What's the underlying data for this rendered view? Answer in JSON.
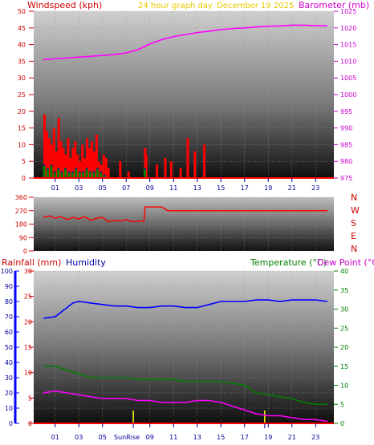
{
  "header": {
    "windspeed_label": "Windspeed (kph)",
    "graph_title": "24 hour graph day",
    "date": "December 19 2025",
    "barometer_label": "Barometer (mb)"
  },
  "wind_panel": {
    "compass_letters": [
      "N",
      "W",
      "S",
      "E",
      "N"
    ]
  },
  "lower_header": {
    "rainfall_label": "Rainfall (mm)",
    "humidity_label": "Humidity",
    "temperature_label": "Temperature (°C)",
    "dewpoint_label": "Dew Point (°C)"
  },
  "footer": {
    "sunrise_label": "SunRise"
  },
  "colors": {
    "wind": "#ff0000",
    "gust_fill": "#ff0000",
    "barometer": "#ff00ff",
    "direction": "#ff0000",
    "humidity": "#0000ff",
    "temperature": "#008000",
    "dewpoint": "#ff00ff",
    "rainfall": "#ff0000",
    "marker": "#ffff00",
    "rain_scale": "#0000ff"
  },
  "chart_data": [
    {
      "type": "line",
      "panel": "wind-barometer",
      "x_ticks": [
        "01",
        "03",
        "05",
        "07",
        "09",
        "11",
        "13",
        "15",
        "17",
        "19",
        "21",
        "23"
      ],
      "y_left": {
        "label": "Windspeed (kph)",
        "ticks": [
          0,
          5,
          10,
          15,
          20,
          25,
          30,
          35,
          40,
          45,
          50
        ],
        "ylim": [
          0,
          50
        ]
      },
      "y_right": {
        "label": "Barometer (mb)",
        "ticks": [
          975,
          980,
          985,
          990,
          995,
          1000,
          1005,
          1010,
          1015,
          1020,
          1025
        ],
        "ylim": [
          975,
          1025
        ]
      },
      "series": [
        {
          "name": "Barometer (mb)",
          "axis": "right",
          "x": [
            0,
            2,
            4,
            6,
            7,
            8,
            9,
            10,
            11,
            12,
            13,
            14,
            15,
            16,
            17,
            18,
            19,
            20,
            21,
            22,
            23,
            24
          ],
          "values": [
            1010.5,
            1011.0,
            1011.5,
            1012.0,
            1012.5,
            1013.5,
            1015.2,
            1016.5,
            1017.4,
            1018.0,
            1018.6,
            1019.0,
            1019.5,
            1019.8,
            1020.0,
            1020.3,
            1020.5,
            1020.6,
            1020.8,
            1020.8,
            1020.7,
            1020.6
          ]
        }
      ],
      "wind_gust_bars": {
        "x": [
          0.1,
          0.3,
          0.5,
          0.7,
          0.9,
          1.1,
          1.3,
          1.5,
          1.7,
          1.9,
          2.1,
          2.3,
          2.5,
          2.7,
          2.9,
          3.1,
          3.3,
          3.5,
          3.7,
          3.9,
          4.1,
          4.3,
          4.5,
          4.7,
          4.9,
          5.1,
          5.3,
          5.5,
          6.5,
          7.2,
          8.6,
          8.7,
          9.6,
          10.3,
          10.8,
          11.6,
          12.2,
          12.8,
          13.6
        ],
        "values": [
          19,
          14,
          12,
          10,
          15,
          8,
          18,
          11,
          9,
          7,
          12,
          6,
          9,
          11,
          7,
          5,
          10,
          6,
          12,
          9,
          11,
          8,
          13,
          5,
          4,
          7,
          6,
          3,
          5,
          2,
          9,
          7,
          4,
          6,
          5,
          3,
          12,
          8,
          10
        ]
      },
      "wind_avg_bars": {
        "x": [
          0.1,
          0.4,
          0.7,
          1.0,
          1.3,
          1.6,
          1.9,
          2.2,
          2.5,
          2.8,
          3.1,
          3.4,
          3.7,
          4.0,
          4.3,
          4.6,
          4.9,
          5.2,
          8.6
        ],
        "values": [
          4,
          3,
          4,
          2,
          3,
          2,
          3,
          2,
          2,
          3,
          2,
          2,
          3,
          2,
          2,
          3,
          2,
          1,
          3
        ]
      }
    },
    {
      "type": "line",
      "panel": "wind-direction",
      "y_left": {
        "ticks": [
          0,
          90,
          180,
          270,
          360
        ],
        "ylim": [
          0,
          360
        ]
      },
      "series": [
        {
          "name": "Direction",
          "x": [
            0,
            0.5,
            1,
            1.5,
            2,
            2.5,
            3,
            3.5,
            4,
            4.5,
            5,
            5.5,
            6,
            6.5,
            7,
            7.5,
            8,
            8.5,
            8.6,
            9,
            10,
            10.5,
            11,
            12,
            14,
            16,
            18,
            20,
            22,
            24
          ],
          "values": [
            225,
            235,
            220,
            230,
            210,
            225,
            215,
            230,
            205,
            220,
            225,
            195,
            205,
            200,
            210,
            195,
            200,
            200,
            295,
            295,
            295,
            270,
            270,
            270,
            270,
            270,
            270,
            270,
            270,
            270
          ]
        }
      ]
    },
    {
      "type": "line",
      "panel": "temperature-humidity",
      "x_ticks": [
        "01",
        "03",
        "05",
        "09",
        "11",
        "13",
        "15",
        "17",
        "19",
        "21",
        "23"
      ],
      "y_left_outer": {
        "label": "Rainfall (mm)",
        "ticks": [
          0,
          10,
          20,
          30,
          40,
          50,
          60,
          70,
          80,
          90,
          100
        ],
        "ylim": [
          0,
          100
        ]
      },
      "y_left_inner": {
        "ticks": [
          0,
          5,
          10,
          15,
          20,
          25,
          30
        ],
        "ylim": [
          0,
          30
        ]
      },
      "y_right": {
        "label": "Temperature (°C)",
        "ticks": [
          0,
          5,
          10,
          15,
          20,
          25,
          30,
          35,
          40
        ],
        "ylim": [
          0,
          40
        ]
      },
      "series": [
        {
          "name": "Humidity",
          "axis": "outer",
          "x": [
            0,
            1,
            2,
            2.5,
            3,
            4,
            5,
            6,
            7,
            8,
            9,
            10,
            11,
            12,
            13,
            14,
            15,
            16,
            17,
            18,
            19,
            20,
            21,
            22,
            23,
            24
          ],
          "values": [
            69,
            70,
            76,
            79,
            80,
            79,
            78,
            77,
            77,
            76,
            76,
            77,
            77,
            76,
            76,
            78,
            80,
            80,
            80,
            81,
            81,
            80,
            81,
            81,
            81,
            80
          ]
        },
        {
          "name": "Temperature (°C)",
          "axis": "right",
          "x": [
            0,
            1,
            2,
            3,
            4,
            5,
            6,
            7,
            8,
            9,
            10,
            11,
            12,
            13,
            14,
            15,
            16,
            17,
            18,
            19,
            20,
            21,
            22,
            23,
            24
          ],
          "values": [
            15,
            15,
            14,
            13,
            12,
            12,
            12,
            12,
            11.5,
            11.5,
            11.5,
            11.5,
            11,
            11,
            11,
            11,
            10.5,
            10,
            8,
            7.5,
            7,
            6.5,
            5.5,
            5,
            5
          ]
        },
        {
          "name": "Dew Point (°C)",
          "axis": "right",
          "x": [
            0,
            1,
            2,
            3,
            4,
            5,
            6,
            7,
            8,
            9,
            10,
            11,
            12,
            13,
            14,
            15,
            16,
            17,
            18,
            19,
            20,
            21,
            22,
            23,
            24
          ],
          "values": [
            8,
            8.5,
            8,
            7.5,
            7,
            6.5,
            6.5,
            6.5,
            6,
            6,
            5.5,
            5.5,
            5.5,
            6,
            6,
            5.5,
            4.5,
            3.5,
            2.5,
            2,
            2,
            1.5,
            1,
            1,
            0.5
          ]
        },
        {
          "name": "Rainfall (mm)",
          "axis": "outer",
          "x": [
            0,
            24
          ],
          "values": [
            0,
            0
          ]
        }
      ],
      "markers": [
        {
          "label": "SunRise",
          "x": 7.6
        },
        {
          "label": "",
          "x": 18.7
        }
      ]
    }
  ]
}
